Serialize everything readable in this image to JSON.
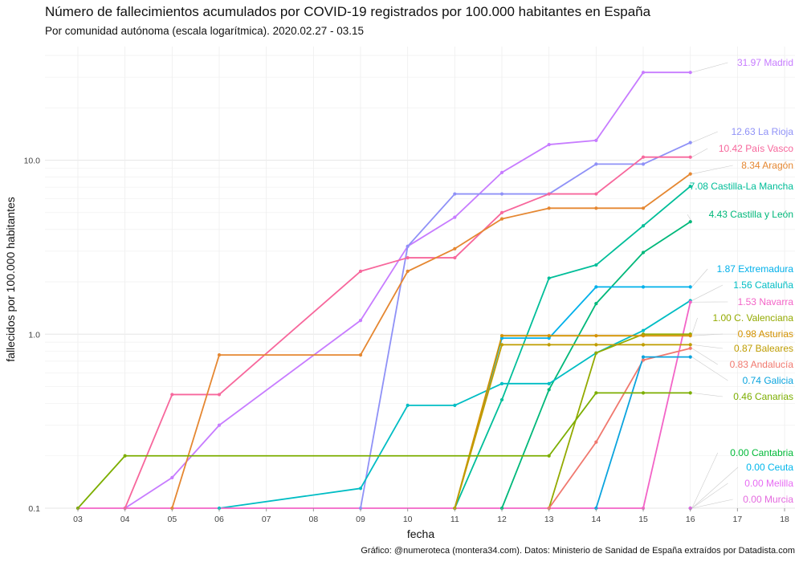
{
  "title": "Número de fallecimientos acumulados por COVID-19 registrados por 100.000 habitantes en España",
  "subtitle": "Por comunidad autónoma (escala logarítmica). 2020.02.27 - 03.15",
  "caption": "Gráfico: @numeroteca (montera34.com). Datos: Ministerio de Sanidad de España extraídos por Datadista.com",
  "chart_data": {
    "type": "line",
    "xlabel": "fecha",
    "ylabel": "fallecidos por 100.000 habitantes",
    "y_scale": "log10",
    "ylim": [
      0.1,
      45
    ],
    "x_ticks": [
      "03",
      "04",
      "05",
      "06",
      "07",
      "08",
      "09",
      "10",
      "11",
      "12",
      "13",
      "14",
      "15",
      "16",
      "17",
      "18"
    ],
    "y_ticks": [
      "0.1",
      "1.0",
      "10.0"
    ],
    "grid": true,
    "legend": "direct labels at right",
    "series": [
      {
        "name": "Madrid",
        "label": "31.97 Madrid",
        "color": "#C77CFF",
        "points": [
          [
            "04",
            0.1
          ],
          [
            "05",
            0.15
          ],
          [
            "06",
            0.3
          ],
          [
            "09",
            1.2
          ],
          [
            "10",
            3.2
          ],
          [
            "11",
            4.7
          ],
          [
            "12",
            8.5
          ],
          [
            "13",
            12.3
          ],
          [
            "14",
            13.0
          ],
          [
            "15",
            31.97
          ],
          [
            "16",
            31.97
          ]
        ]
      },
      {
        "name": "La Rioja",
        "label": "12.63 La Rioja",
        "color": "#8F91F7",
        "points": [
          [
            "09",
            0.1
          ],
          [
            "10",
            3.2
          ],
          [
            "11",
            6.4
          ],
          [
            "12",
            6.4
          ],
          [
            "13",
            6.4
          ],
          [
            "14",
            9.5
          ],
          [
            "15",
            9.5
          ],
          [
            "16",
            12.63
          ]
        ]
      },
      {
        "name": "País Vasco",
        "label": "10.42 País Vasco",
        "color": "#F7679C",
        "points": [
          [
            "04",
            0.1
          ],
          [
            "05",
            0.45
          ],
          [
            "06",
            0.45
          ],
          [
            "09",
            2.3
          ],
          [
            "10",
            2.75
          ],
          [
            "11",
            2.75
          ],
          [
            "12",
            5.0
          ],
          [
            "13",
            6.4
          ],
          [
            "14",
            6.4
          ],
          [
            "15",
            10.42
          ],
          [
            "16",
            10.42
          ]
        ]
      },
      {
        "name": "Aragón",
        "label": "8.34 Aragón",
        "color": "#E58731",
        "points": [
          [
            "05",
            0.1
          ],
          [
            "06",
            0.76
          ],
          [
            "09",
            0.76
          ],
          [
            "10",
            2.3
          ],
          [
            "11",
            3.1
          ],
          [
            "12",
            4.6
          ],
          [
            "13",
            5.3
          ],
          [
            "14",
            5.3
          ],
          [
            "15",
            5.3
          ],
          [
            "16",
            8.34
          ]
        ]
      },
      {
        "name": "Castilla-La Mancha",
        "label": "7.08 Castilla-La Mancha",
        "color": "#00BE99",
        "points": [
          [
            "11",
            0.1
          ],
          [
            "12",
            0.42
          ],
          [
            "13",
            2.1
          ],
          [
            "14",
            2.5
          ],
          [
            "15",
            4.2
          ],
          [
            "16",
            7.08
          ]
        ]
      },
      {
        "name": "Castilla y León",
        "label": "4.43 Castilla y León",
        "color": "#00B87A",
        "points": [
          [
            "12",
            0.1
          ],
          [
            "13",
            0.48
          ],
          [
            "14",
            1.5
          ],
          [
            "15",
            2.95
          ],
          [
            "16",
            4.43
          ]
        ]
      },
      {
        "name": "Extremadura",
        "label": "1.87 Extremadura",
        "color": "#00B0EA",
        "points": [
          [
            "11",
            0.1
          ],
          [
            "12",
            0.95
          ],
          [
            "13",
            0.95
          ],
          [
            "14",
            1.87
          ],
          [
            "15",
            1.87
          ],
          [
            "16",
            1.87
          ]
        ]
      },
      {
        "name": "Cataluña",
        "label": "1.56 Cataluña",
        "color": "#00BDC4",
        "points": [
          [
            "06",
            0.1
          ],
          [
            "09",
            0.13
          ],
          [
            "10",
            0.39
          ],
          [
            "11",
            0.39
          ],
          [
            "12",
            0.52
          ],
          [
            "13",
            0.52
          ],
          [
            "14",
            0.78
          ],
          [
            "15",
            1.05
          ],
          [
            "16",
            1.56
          ]
        ]
      },
      {
        "name": "Navarra",
        "label": "1.53 Navarra",
        "color": "#F364C7",
        "points": [
          [
            "03",
            0.1
          ],
          [
            "15",
            0.1
          ],
          [
            "16",
            1.53
          ]
        ]
      },
      {
        "name": "C. Valenciana",
        "label": "1.00 C. Valenciana",
        "color": "#93AA00",
        "points": [
          [
            "13",
            0.1
          ],
          [
            "14",
            0.78
          ],
          [
            "15",
            1.0
          ],
          [
            "16",
            1.0
          ]
        ]
      },
      {
        "name": "Asturias",
        "label": "0.98 Asturias",
        "color": "#D39200",
        "points": [
          [
            "11",
            0.1
          ],
          [
            "12",
            0.98
          ],
          [
            "13",
            0.98
          ],
          [
            "14",
            0.98
          ],
          [
            "15",
            0.98
          ],
          [
            "16",
            0.98
          ]
        ]
      },
      {
        "name": "Baleares",
        "label": "0.87 Baleares",
        "color": "#BF9D00",
        "points": [
          [
            "11",
            0.1
          ],
          [
            "12",
            0.87
          ],
          [
            "13",
            0.87
          ],
          [
            "14",
            0.87
          ],
          [
            "15",
            0.87
          ],
          [
            "16",
            0.87
          ]
        ]
      },
      {
        "name": "Andalucía",
        "label": "0.83 Andalucía",
        "color": "#F0786E",
        "points": [
          [
            "13",
            0.1
          ],
          [
            "14",
            0.24
          ],
          [
            "15",
            0.71
          ],
          [
            "16",
            0.83
          ]
        ]
      },
      {
        "name": "Galicia",
        "label": "0.74 Galicia",
        "color": "#0AA4DE",
        "points": [
          [
            "14",
            0.1
          ],
          [
            "15",
            0.74
          ],
          [
            "16",
            0.74
          ]
        ]
      },
      {
        "name": "Canarias",
        "label": "0.46 Canarias",
        "color": "#7CAE00",
        "points": [
          [
            "03",
            0.1
          ],
          [
            "04",
            0.2
          ],
          [
            "13",
            0.2
          ],
          [
            "14",
            0.46
          ],
          [
            "15",
            0.46
          ],
          [
            "16",
            0.46
          ]
        ]
      },
      {
        "name": "Cantabria",
        "label": "0.00 Cantabria",
        "color": "#00BA38",
        "points": [
          [
            "16",
            0.1
          ]
        ]
      },
      {
        "name": "Ceuta",
        "label": "0.00 Ceuta",
        "color": "#00B6EB",
        "points": [
          [
            "16",
            0.1
          ]
        ]
      },
      {
        "name": "Melilla",
        "label": "0.00 Melilla",
        "color": "#E76BF3",
        "points": [
          [
            "16",
            0.1
          ]
        ]
      },
      {
        "name": "Murcia",
        "label": "0.00 Murcia",
        "color": "#E46ADF",
        "points": [
          [
            "16",
            0.1
          ]
        ]
      }
    ]
  }
}
